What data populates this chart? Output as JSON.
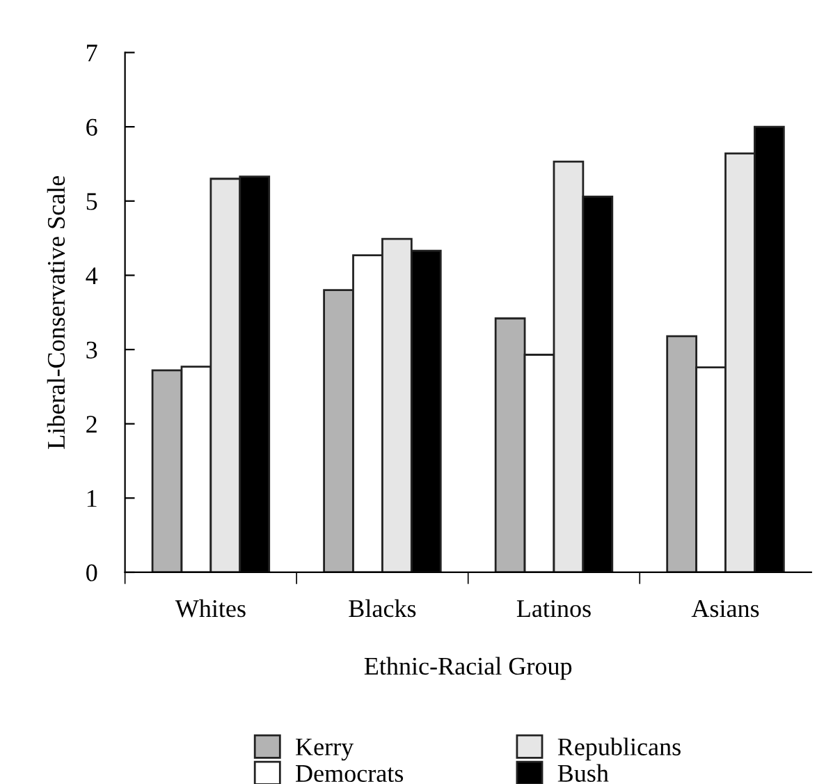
{
  "chart_data": {
    "type": "bar",
    "xlabel": "Ethnic-Racial Group",
    "ylabel": "Liberal-Conservative Scale",
    "categories": [
      "Whites",
      "Blacks",
      "Latinos",
      "Asians"
    ],
    "series": [
      {
        "name": "Kerry",
        "color": "#b3b3b3",
        "values": [
          2.72,
          3.8,
          3.42,
          3.18
        ]
      },
      {
        "name": "Democrats",
        "color": "#ffffff",
        "values": [
          2.77,
          4.27,
          2.93,
          2.76
        ]
      },
      {
        "name": "Republicans",
        "color": "#e6e6e6",
        "values": [
          5.3,
          4.49,
          5.53,
          5.64
        ]
      },
      {
        "name": "Bush",
        "color": "#000000",
        "values": [
          5.33,
          4.33,
          5.06,
          6.0
        ]
      }
    ],
    "ylim": [
      0,
      7
    ],
    "yticks": [
      0,
      1,
      2,
      3,
      4,
      5,
      6,
      7
    ],
    "grid": false,
    "legend": "bottom"
  }
}
